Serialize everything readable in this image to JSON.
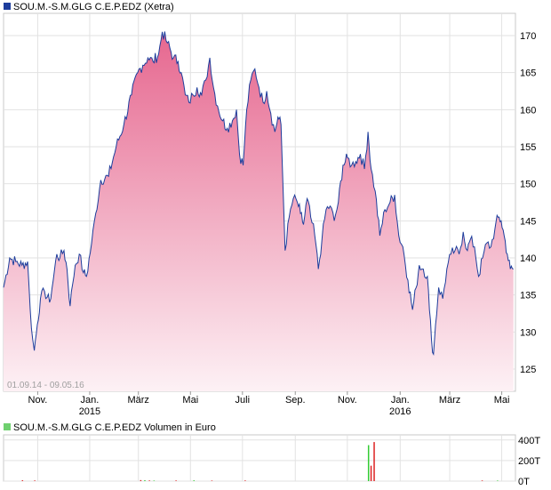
{
  "chart_data": [
    {
      "type": "area",
      "title": "SOU.M.-S.M.GLG C.E.P.EDZ (Xetra)",
      "date_range": "01.09.14 - 09.05.16",
      "ylim": [
        122,
        173
      ],
      "y_ticks": [
        125,
        130,
        135,
        140,
        145,
        150,
        155,
        160,
        165,
        170
      ],
      "y_tick_labels": [
        "125",
        "130",
        "135",
        "140",
        "145",
        "150",
        "155",
        "160",
        "165",
        "170"
      ],
      "x_ticks": [
        {
          "label": "Nov.",
          "year": "",
          "t": 0.0667
        },
        {
          "label": "Jan.",
          "year": "2015",
          "t": 0.1683
        },
        {
          "label": "März",
          "year": "",
          "t": 0.2634
        },
        {
          "label": "Mai",
          "year": "",
          "t": 0.3651
        },
        {
          "label": "Juli",
          "year": "",
          "t": 0.4667
        },
        {
          "label": "Sep.",
          "year": "",
          "t": 0.5699
        },
        {
          "label": "Nov.",
          "year": "",
          "t": 0.6716
        },
        {
          "label": "Jan.",
          "year": "2016",
          "t": 0.7748
        },
        {
          "label": "März",
          "year": "",
          "t": 0.8716
        },
        {
          "label": "Mai",
          "year": "",
          "t": 0.9732
        }
      ],
      "grid": true,
      "legend": "top-left",
      "colors": {
        "line": "#1d3d9c",
        "fill_top": "#e6678f",
        "fill_bottom": "#fdf1f5",
        "legend_box": "#1d3d9c"
      },
      "series": [
        {
          "name": "SOU.M.-S.M.GLG C.E.P.EDZ (Xetra)",
          "points": [
            [
              0.0,
              136.0
            ],
            [
              0.012,
              140.0
            ],
            [
              0.024,
              139.5
            ],
            [
              0.036,
              139.0
            ],
            [
              0.047,
              139.5
            ],
            [
              0.052,
              133.0
            ],
            [
              0.057,
              129.0
            ],
            [
              0.06,
              127.5
            ],
            [
              0.066,
              131.0
            ],
            [
              0.072,
              134.5
            ],
            [
              0.08,
              135.5
            ],
            [
              0.09,
              134.0
            ],
            [
              0.097,
              137.0
            ],
            [
              0.104,
              140.5
            ],
            [
              0.11,
              140.0
            ],
            [
              0.118,
              141.0
            ],
            [
              0.124,
              138.5
            ],
            [
              0.13,
              133.5
            ],
            [
              0.135,
              136.5
            ],
            [
              0.14,
              139.0
            ],
            [
              0.148,
              140.5
            ],
            [
              0.156,
              138.0
            ],
            [
              0.162,
              137.5
            ],
            [
              0.172,
              142.0
            ],
            [
              0.18,
              146.0
            ],
            [
              0.19,
              150.5
            ],
            [
              0.205,
              151.0
            ],
            [
              0.22,
              155.0
            ],
            [
              0.235,
              158.0
            ],
            [
              0.25,
              162.0
            ],
            [
              0.262,
              165.0
            ],
            [
              0.272,
              166.0
            ],
            [
              0.282,
              167.0
            ],
            [
              0.292,
              166.5
            ],
            [
              0.303,
              167.5
            ],
            [
              0.31,
              170.5
            ],
            [
              0.32,
              169.0
            ],
            [
              0.332,
              167.0
            ],
            [
              0.341,
              166.5
            ],
            [
              0.347,
              165.0
            ],
            [
              0.355,
              162.0
            ],
            [
              0.362,
              161.0
            ],
            [
              0.37,
              162.0
            ],
            [
              0.378,
              163.0
            ],
            [
              0.387,
              162.0
            ],
            [
              0.395,
              164.0
            ],
            [
              0.403,
              167.0
            ],
            [
              0.41,
              163.0
            ],
            [
              0.418,
              160.5
            ],
            [
              0.428,
              158.5
            ],
            [
              0.437,
              157.5
            ],
            [
              0.447,
              158.5
            ],
            [
              0.455,
              160.0
            ],
            [
              0.461,
              154.0
            ],
            [
              0.468,
              152.5
            ],
            [
              0.475,
              160.0
            ],
            [
              0.483,
              164.0
            ],
            [
              0.491,
              165.5
            ],
            [
              0.499,
              163.0
            ],
            [
              0.507,
              161.0
            ],
            [
              0.514,
              162.5
            ],
            [
              0.522,
              159.5
            ],
            [
              0.53,
              157.0
            ],
            [
              0.536,
              159.0
            ],
            [
              0.542,
              158.0
            ],
            [
              0.55,
              141.0
            ],
            [
              0.558,
              145.5
            ],
            [
              0.566,
              148.0
            ],
            [
              0.574,
              147.5
            ],
            [
              0.58,
              146.0
            ],
            [
              0.586,
              144.5
            ],
            [
              0.593,
              148.0
            ],
            [
              0.6,
              145.5
            ],
            [
              0.608,
              143.0
            ],
            [
              0.615,
              138.5
            ],
            [
              0.622,
              142.5
            ],
            [
              0.63,
              146.5
            ],
            [
              0.638,
              147.0
            ],
            [
              0.646,
              145.0
            ],
            [
              0.654,
              147.5
            ],
            [
              0.663,
              152.5
            ],
            [
              0.672,
              153.5
            ],
            [
              0.68,
              152.5
            ],
            [
              0.688,
              153.0
            ],
            [
              0.697,
              154.0
            ],
            [
              0.705,
              152.0
            ],
            [
              0.712,
              157.0
            ],
            [
              0.718,
              152.0
            ],
            [
              0.726,
              149.0
            ],
            [
              0.735,
              143.0
            ],
            [
              0.745,
              146.5
            ],
            [
              0.755,
              147.5
            ],
            [
              0.764,
              148.5
            ],
            [
              0.772,
              143.0
            ],
            [
              0.78,
              141.5
            ],
            [
              0.79,
              137.0
            ],
            [
              0.799,
              133.0
            ],
            [
              0.806,
              136.0
            ],
            [
              0.812,
              139.0
            ],
            [
              0.82,
              138.5
            ],
            [
              0.828,
              137.5
            ],
            [
              0.832,
              133.0
            ],
            [
              0.836,
              129.0
            ],
            [
              0.84,
              127.0
            ],
            [
              0.844,
              131.0
            ],
            [
              0.85,
              136.0
            ],
            [
              0.858,
              134.5
            ],
            [
              0.866,
              138.5
            ],
            [
              0.874,
              140.5
            ],
            [
              0.882,
              141.0
            ],
            [
              0.89,
              140.5
            ],
            [
              0.898,
              143.5
            ],
            [
              0.906,
              141.0
            ],
            [
              0.912,
              142.5
            ],
            [
              0.92,
              141.5
            ],
            [
              0.928,
              137.5
            ],
            [
              0.936,
              140.0
            ],
            [
              0.944,
              142.0
            ],
            [
              0.952,
              141.5
            ],
            [
              0.96,
              144.0
            ],
            [
              0.966,
              145.5
            ],
            [
              0.972,
              145.0
            ],
            [
              0.978,
              143.0
            ],
            [
              0.984,
              140.5
            ],
            [
              0.99,
              138.5
            ],
            [
              0.996,
              138.5
            ]
          ]
        }
      ]
    },
    {
      "type": "bar",
      "title": "SOU.M.-S.M.GLG C.E.P.EDZ Volumen in Euro",
      "ylim": [
        0,
        450
      ],
      "y_ticks": [
        0,
        200,
        400
      ],
      "y_tick_labels": [
        "0T",
        "200T",
        "400T"
      ],
      "legend": "top-left",
      "colors": {
        "up": "#33cc33",
        "down": "#dd2222",
        "legend_box": "#6fd06f"
      },
      "bars": [
        {
          "t": 0.037,
          "value": 8,
          "color": "down"
        },
        {
          "t": 0.061,
          "value": 6,
          "color": "down"
        },
        {
          "t": 0.268,
          "value": 10,
          "color": "down"
        },
        {
          "t": 0.276,
          "value": 8,
          "color": "up"
        },
        {
          "t": 0.285,
          "value": 6,
          "color": "down"
        },
        {
          "t": 0.294,
          "value": 5,
          "color": "up"
        },
        {
          "t": 0.337,
          "value": 6,
          "color": "down"
        },
        {
          "t": 0.372,
          "value": 7,
          "color": "up"
        },
        {
          "t": 0.407,
          "value": 5,
          "color": "down"
        },
        {
          "t": 0.472,
          "value": 6,
          "color": "down"
        },
        {
          "t": 0.713,
          "value": 350,
          "color": "up"
        },
        {
          "t": 0.718,
          "value": 150,
          "color": "down"
        },
        {
          "t": 0.724,
          "value": 380,
          "color": "down"
        },
        {
          "t": 0.935,
          "value": 6,
          "color": "down"
        },
        {
          "t": 0.965,
          "value": 5,
          "color": "up"
        }
      ]
    }
  ]
}
